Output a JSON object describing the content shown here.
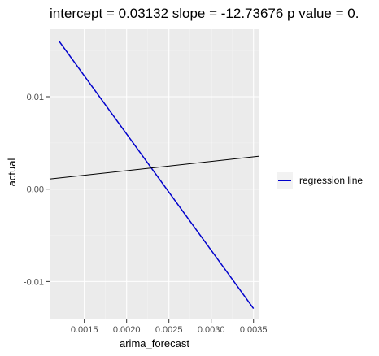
{
  "chart_data": {
    "type": "line",
    "title": "intercept = 0.03132 slope = -12.73676 p value = 0.",
    "xlabel": "arima_forecast",
    "ylabel": "actual",
    "xlim": [
      0.00109,
      0.00357
    ],
    "ylim": [
      -0.0141,
      0.0173
    ],
    "x_ticks": [
      0.0015,
      0.002,
      0.0025,
      0.003,
      0.0035
    ],
    "x_tick_labels": [
      "0.0015",
      "0.0020",
      "0.0025",
      "0.0030",
      "0.0035"
    ],
    "y_ticks": [
      -0.01,
      0.0,
      0.01
    ],
    "y_tick_labels": [
      "-0.01",
      "0.00",
      "0.01"
    ],
    "grid": true,
    "legend_position": "right",
    "series": [
      {
        "name": "regression line",
        "color": "#0000cc",
        "x": [
          0.0012,
          0.0035
        ],
        "y": [
          0.01604,
          -0.01292
        ]
      },
      {
        "color": "#000000",
        "x": [
          0.00109,
          0.00357
        ],
        "y": [
          0.00109,
          0.00357
        ]
      }
    ],
    "colors": {
      "panel_background": "#ebebeb",
      "grid_major": "#ffffff",
      "grid_minor": "#f2f2f2",
      "regression": "#0000cc",
      "reference": "#000000"
    }
  }
}
